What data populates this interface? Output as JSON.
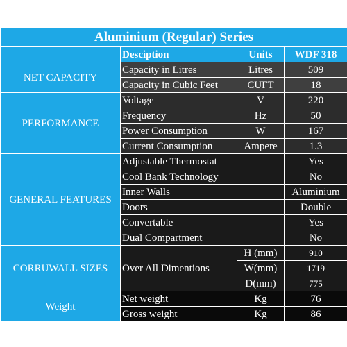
{
  "title": "Aluminium (Regular) Series",
  "header": {
    "description": "Desciption",
    "units": "Units",
    "model": "WDF 318"
  },
  "sections": {
    "net_capacity": {
      "label": "NET CAPACITY",
      "rows": [
        {
          "desc": "Capacity in Litres",
          "unit": "Litres",
          "value": "509"
        },
        {
          "desc": "Capacity in Cubic Feet",
          "unit": "CUFT",
          "value": "18"
        }
      ]
    },
    "performance": {
      "label": "PERFORMANCE",
      "rows": [
        {
          "desc": "Voltage",
          "unit": "V",
          "value": "220"
        },
        {
          "desc": "Frequency",
          "unit": "Hz",
          "value": "50"
        },
        {
          "desc": "Power Consumption",
          "unit": "W",
          "value": "167"
        },
        {
          "desc": "Current Consumption",
          "unit": "Ampere",
          "value": "1.3"
        }
      ]
    },
    "general_features": {
      "label": "GENERAL FEATURES",
      "rows": [
        {
          "desc": "Adjustable Thermostat",
          "unit": "",
          "value": "Yes"
        },
        {
          "desc": "Cool Bank Technology",
          "unit": "",
          "value": "No"
        },
        {
          "desc": "Inner Walls",
          "unit": "",
          "value": "Aluminium"
        },
        {
          "desc": "Doors",
          "unit": "",
          "value": "Double"
        },
        {
          "desc": "Convertable",
          "unit": "",
          "value": "Yes"
        },
        {
          "desc": "Dual Compartment",
          "unit": "",
          "value": "No"
        }
      ]
    },
    "corruwall_sizes": {
      "label": "CORRUWALL SIZES",
      "desc": "Over All Dimentions",
      "rows": [
        {
          "unit": "H (mm)",
          "value": "910"
        },
        {
          "unit": "W(mm)",
          "value": "1719"
        },
        {
          "unit": "D(mm)",
          "value": "775"
        }
      ]
    },
    "weight": {
      "label": "Weight",
      "rows": [
        {
          "desc": "Net weight",
          "unit": "Kg",
          "value": "76"
        },
        {
          "desc": "Gross weight",
          "unit": "Kg",
          "value": "86"
        }
      ]
    }
  }
}
